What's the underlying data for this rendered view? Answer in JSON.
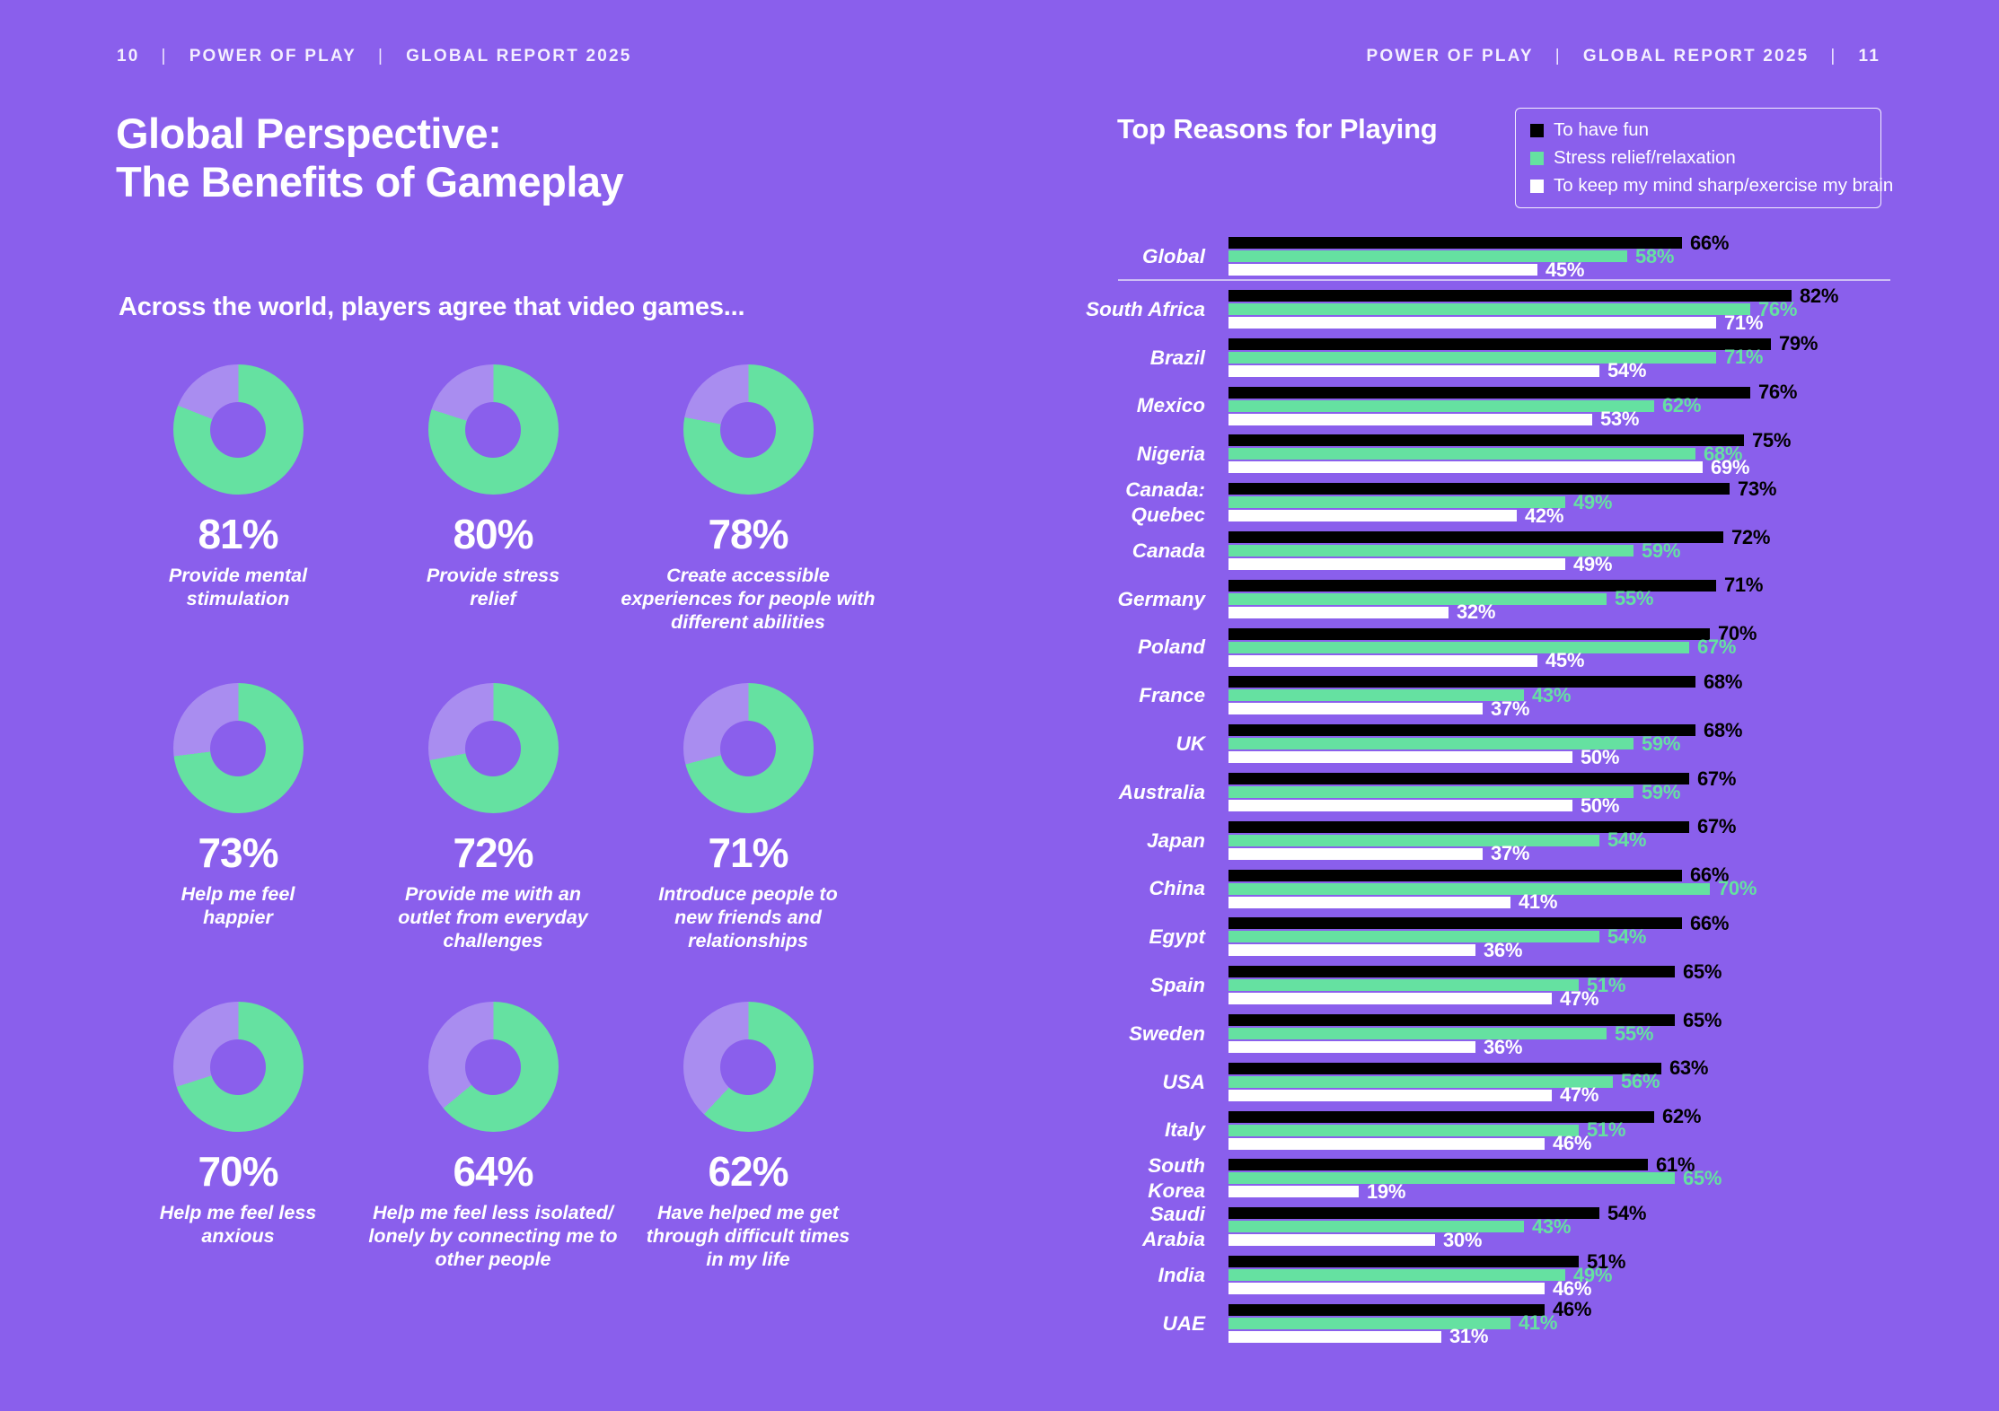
{
  "header_left": {
    "page_num": "10",
    "brand": "POWER OF PLAY",
    "report": "GLOBAL REPORT 2025"
  },
  "header_right": {
    "brand": "POWER OF PLAY",
    "report": "GLOBAL REPORT 2025",
    "page_num": "11"
  },
  "left_page": {
    "title": "Global Perspective:\nThe Benefits of Gameplay",
    "subtitle": "Across the world, players agree that video games...",
    "donuts": [
      {
        "pct": 81,
        "caption": "Provide mental\nstimulation"
      },
      {
        "pct": 80,
        "caption": "Provide stress\nrelief"
      },
      {
        "pct": 78,
        "caption": "Create accessible\nexperiences for people with\ndifferent abilities"
      },
      {
        "pct": 73,
        "caption": "Help me feel\nhappier"
      },
      {
        "pct": 72,
        "caption": "Provide me with an\noutlet from everyday\nchallenges"
      },
      {
        "pct": 71,
        "caption": "Introduce people to\nnew friends and\nrelationships"
      },
      {
        "pct": 70,
        "caption": "Help me feel less\nanxious"
      },
      {
        "pct": 64,
        "caption": "Help me feel less isolated/\nlonely by connecting me to\nother people"
      },
      {
        "pct": 62,
        "caption": "Have helped me get\nthrough difficult times\nin my life"
      }
    ]
  },
  "colors": {
    "background": "#8A5FEC",
    "green": "#65E1A1",
    "lavender": "#A98DF0",
    "black": "#000000",
    "white": "#FFFFFF"
  },
  "chart_data": {
    "type": "bar",
    "orientation": "horizontal",
    "title": "Top Reasons for Playing",
    "unit": "%",
    "xlim": [
      0,
      100
    ],
    "legend_position": "top-right",
    "series_names": [
      "To have fun",
      "Stress relief/relaxation",
      "To keep my mind sharp/exercise my brain"
    ],
    "legend": [
      {
        "label": "To have fun",
        "color": "#000000"
      },
      {
        "label": "Stress relief/relaxation",
        "color": "#65E1A1"
      },
      {
        "label": "To keep my mind sharp/exercise my brain",
        "color": "#FFFFFF"
      }
    ],
    "rows": [
      {
        "label": "Global",
        "group": "global",
        "values": [
          66,
          58,
          45
        ]
      },
      {
        "label": "South Africa",
        "values": [
          82,
          76,
          71
        ]
      },
      {
        "label": "Brazil",
        "values": [
          79,
          71,
          54
        ]
      },
      {
        "label": "Mexico",
        "values": [
          76,
          62,
          53
        ]
      },
      {
        "label": "Nigeria",
        "values": [
          75,
          68,
          69
        ]
      },
      {
        "label": "Canada:\nQuebec",
        "values": [
          73,
          49,
          42
        ]
      },
      {
        "label": "Canada",
        "values": [
          72,
          59,
          49
        ]
      },
      {
        "label": "Germany",
        "values": [
          71,
          55,
          32
        ]
      },
      {
        "label": "Poland",
        "values": [
          70,
          67,
          45
        ]
      },
      {
        "label": "France",
        "values": [
          68,
          43,
          37
        ]
      },
      {
        "label": "UK",
        "values": [
          68,
          59,
          50
        ]
      },
      {
        "label": "Australia",
        "values": [
          67,
          59,
          50
        ]
      },
      {
        "label": "Japan",
        "values": [
          67,
          54,
          37
        ]
      },
      {
        "label": "China",
        "values": [
          66,
          70,
          41
        ]
      },
      {
        "label": "Egypt",
        "values": [
          66,
          54,
          36
        ]
      },
      {
        "label": "Spain",
        "values": [
          65,
          51,
          47
        ]
      },
      {
        "label": "Sweden",
        "values": [
          65,
          55,
          36
        ]
      },
      {
        "label": "USA",
        "values": [
          63,
          56,
          47
        ]
      },
      {
        "label": "Italy",
        "values": [
          62,
          51,
          46
        ]
      },
      {
        "label": "South\nKorea",
        "values": [
          61,
          65,
          19
        ]
      },
      {
        "label": "Saudi\nArabia",
        "values": [
          54,
          43,
          30
        ]
      },
      {
        "label": "India",
        "values": [
          51,
          49,
          46
        ]
      },
      {
        "label": "UAE",
        "values": [
          46,
          41,
          31
        ]
      }
    ]
  }
}
